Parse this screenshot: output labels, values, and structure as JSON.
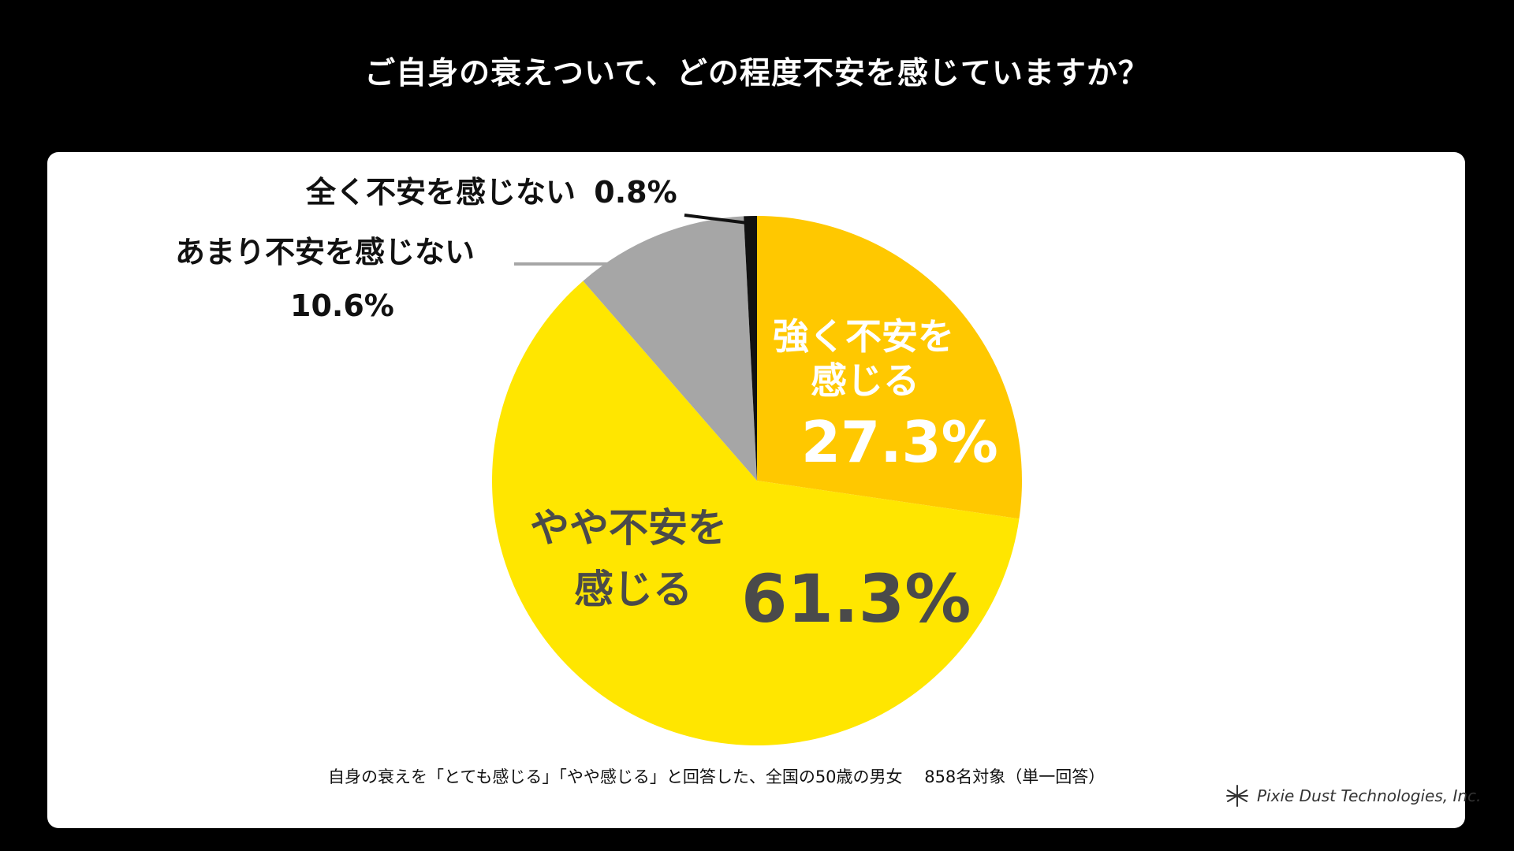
{
  "title": "ご自身の衰えついて、どの程度不安を感じていますか？",
  "chart_data": {
    "type": "pie",
    "start_angle_deg": 0,
    "direction": "clockwise",
    "slices": [
      {
        "label_line1": "強く不安を",
        "label_line2": "感じる",
        "value": 27.3,
        "value_label": "27.3%",
        "color": "#FFC800"
      },
      {
        "label_line1": "やや不安を",
        "label_line2": "感じる",
        "value": 61.3,
        "value_label": "61.3%",
        "color": "#FFE600"
      },
      {
        "label_line1": "あまり不安を感じない",
        "label_line2": "",
        "value": 10.6,
        "value_label": "10.6%",
        "color": "#A6A6A6"
      },
      {
        "label_line1": "全く不安を感じない",
        "label_line2": "",
        "value": 0.8,
        "value_label": "0.8%",
        "color": "#111111"
      }
    ]
  },
  "footnote": "自身の衰えを「とても感じる」「やや感じる」と回答した、全国の50歳の男女　 858名対象（単一回答）",
  "brand": {
    "name": "Pixie Dust Technologies, Inc.",
    "icon": "asterisk-logo-icon"
  },
  "colors": {
    "background": "#000000",
    "panel": "#FFFFFF",
    "strong": "#FFC800",
    "moderate": "#FFE600",
    "little": "#A6A6A6",
    "none": "#111111",
    "leader_grey": "#A6A6A6"
  }
}
